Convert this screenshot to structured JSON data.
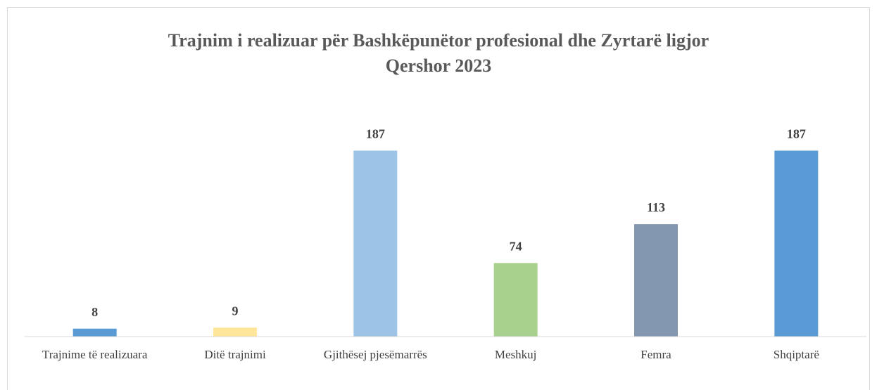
{
  "chart_data": {
    "type": "bar",
    "title": [
      "Trajnim  i realizuar  për Bashkëpunëtor profesional dhe Zyrtarë  ligjor",
      "Qershor 2023"
    ],
    "categories": [
      "Trajnime të realizuara",
      "Ditë trajnimi",
      "Gjithësej pjesëmarrës",
      "Meshkuj",
      "Femra",
      "Shqiptarë"
    ],
    "values": [
      8,
      9,
      187,
      74,
      113,
      187
    ],
    "colors": [
      "#5b9bd5",
      "#ffe699",
      "#9dc3e6",
      "#a9d18e",
      "#8497b0",
      "#5b9bd5"
    ],
    "ylim": [
      0,
      200
    ]
  }
}
